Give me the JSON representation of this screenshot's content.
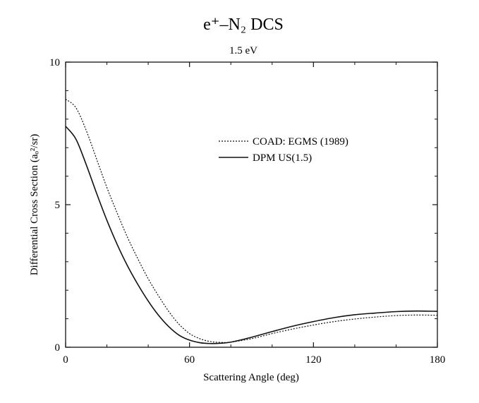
{
  "chart_data": {
    "type": "line",
    "title": "e⁺–N₂ DCS",
    "subtitle": "1.5 eV",
    "xlabel": "Scattering Angle (deg)",
    "ylabel": "Differential Cross Section (aₒ²/sr)",
    "xlim": [
      0,
      180
    ],
    "ylim": [
      0,
      10
    ],
    "xticks": [
      "0",
      "60",
      "120",
      "180"
    ],
    "yticks": [
      "0",
      "5",
      "10"
    ],
    "grid": false,
    "legend_position": "upper-right",
    "series": [
      {
        "name": "COAD: EGMS (1989)",
        "style": "dotted",
        "color": "#111111",
        "x": [
          0,
          5,
          10,
          15,
          20,
          25,
          30,
          35,
          40,
          45,
          50,
          55,
          60,
          65,
          70,
          75,
          80,
          90,
          100,
          110,
          120,
          130,
          140,
          150,
          160,
          170,
          180
        ],
        "y": [
          8.7,
          8.4,
          7.6,
          6.6,
          5.6,
          4.7,
          3.85,
          3.1,
          2.4,
          1.8,
          1.25,
          0.8,
          0.48,
          0.3,
          0.2,
          0.17,
          0.18,
          0.3,
          0.48,
          0.64,
          0.78,
          0.9,
          0.99,
          1.06,
          1.11,
          1.13,
          1.12
        ]
      },
      {
        "name": "DPM US(1.5)",
        "style": "solid",
        "color": "#111111",
        "x": [
          0,
          5,
          10,
          15,
          20,
          25,
          30,
          35,
          40,
          45,
          50,
          55,
          60,
          65,
          70,
          75,
          80,
          90,
          100,
          110,
          120,
          130,
          140,
          150,
          160,
          170,
          180
        ],
        "y": [
          7.75,
          7.3,
          6.4,
          5.4,
          4.45,
          3.6,
          2.85,
          2.2,
          1.62,
          1.12,
          0.72,
          0.42,
          0.25,
          0.16,
          0.13,
          0.14,
          0.18,
          0.35,
          0.55,
          0.74,
          0.9,
          1.04,
          1.14,
          1.2,
          1.25,
          1.27,
          1.26
        ]
      }
    ]
  }
}
